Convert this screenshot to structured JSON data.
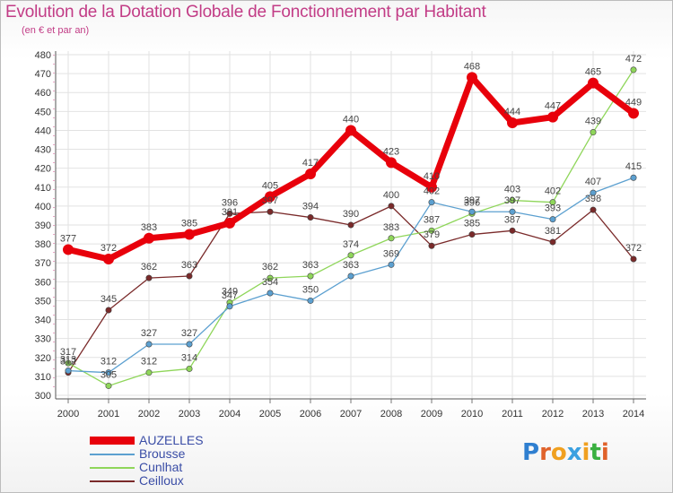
{
  "title": "Evolution de la Dotation Globale de Fonctionnement par Habitant",
  "subtitle": "(en € et par an)",
  "logo": {
    "text": "Proxiti"
  },
  "chart_data": {
    "type": "line",
    "x": [
      "2000",
      "2001",
      "2002",
      "2003",
      "2004",
      "2005",
      "2006",
      "2007",
      "2008",
      "2009",
      "2010",
      "2011",
      "2012",
      "2013",
      "2014"
    ],
    "ylim": [
      300,
      480
    ],
    "yticks": [
      300,
      310,
      320,
      330,
      340,
      350,
      360,
      370,
      380,
      390,
      400,
      410,
      420,
      430,
      440,
      450,
      460,
      470,
      480
    ],
    "grid": true,
    "legend_position": "bottom-left",
    "series": [
      {
        "name": "AUZELLES",
        "color": "#e8000b",
        "values": [
          377,
          372,
          383,
          385,
          391,
          405,
          417,
          440,
          423,
          410,
          468,
          444,
          447,
          465,
          449
        ]
      },
      {
        "name": "Brousse",
        "color": "#5ca0d0",
        "values": [
          313,
          312,
          327,
          327,
          347,
          354,
          350,
          363,
          369,
          402,
          397,
          397,
          393,
          407,
          415
        ]
      },
      {
        "name": "Cunlhat",
        "color": "#8fd65a",
        "values": [
          317,
          305,
          312,
          314,
          349,
          362,
          363,
          374,
          383,
          387,
          396,
          403,
          402,
          439,
          472
        ]
      },
      {
        "name": "Ceilloux",
        "color": "#7a2a2a",
        "values": [
          312,
          345,
          362,
          363,
          396,
          397,
          394,
          390,
          400,
          379,
          385,
          387,
          381,
          398,
          372
        ]
      }
    ]
  }
}
